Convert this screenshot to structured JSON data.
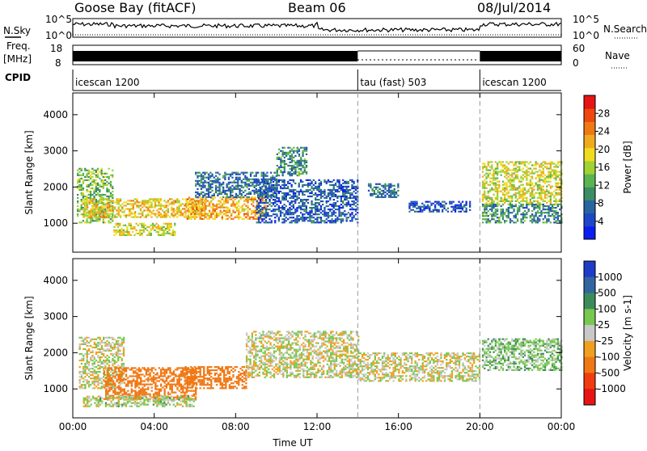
{
  "header": {
    "site": "Goose Bay (fitACF)",
    "beam": "Beam 06",
    "date": "08/Jul/2014"
  },
  "status_rows": {
    "nsky_label": "N.Sky",
    "nsky_ticks": [
      "10^5",
      "10^0"
    ],
    "nsearch_label": "N.Search",
    "nsearch_ticks": [
      "10^5",
      "10^0"
    ],
    "freq_label": "Freq.",
    "freq_units": "[MHz]",
    "freq_ticks": [
      "18",
      "8"
    ],
    "nave_label": "Nave",
    "nave_ticks": [
      "60",
      "0"
    ],
    "cpid_label": "CPID",
    "cpid_segments": [
      {
        "name": "icescan 1200",
        "start_hour": 0,
        "end_hour": 14
      },
      {
        "name": "tau (fast) 503",
        "start_hour": 14,
        "end_hour": 20
      },
      {
        "name": "icescan 1200",
        "start_hour": 20,
        "end_hour": 24
      }
    ]
  },
  "chart_data": [
    {
      "type": "heatmap",
      "title": "",
      "xlabel": "Time UT",
      "ylabel": "Slant Range [km]",
      "xlim": [
        0,
        24
      ],
      "ylim": [
        200,
        4600
      ],
      "x_ticks": [
        "00:00",
        "04:00",
        "08:00",
        "12:00",
        "16:00",
        "20:00",
        "00:00"
      ],
      "y_ticks": [
        1000,
        2000,
        3000,
        4000
      ],
      "colorbar": {
        "label": "Power [dB]",
        "ticks": [
          4,
          8,
          12,
          16,
          20,
          24,
          28
        ],
        "min": 0,
        "max": 32,
        "colors": [
          "#0a1ef0",
          "#1e46c8",
          "#2864a0",
          "#3c8c64",
          "#5ab450",
          "#a0d232",
          "#f0dc1e",
          "#f0aa1e",
          "#f07814",
          "#f0460f",
          "#e61414"
        ]
      },
      "regions": [
        {
          "t0": 0.2,
          "t1": 2.0,
          "r0": 1000,
          "r1": 2500,
          "value": 14
        },
        {
          "t0": 0.5,
          "t1": 6.5,
          "r0": 1150,
          "r1": 1650,
          "value": 20
        },
        {
          "t0": 2.0,
          "t1": 5.0,
          "r0": 650,
          "r1": 1000,
          "value": 18
        },
        {
          "t0": 5.5,
          "t1": 9.5,
          "r0": 1100,
          "r1": 1700,
          "value": 22
        },
        {
          "t0": 6.0,
          "t1": 10.0,
          "r0": 1700,
          "r1": 2400,
          "value": 8
        },
        {
          "t0": 9.0,
          "t1": 14.0,
          "r0": 1000,
          "r1": 2200,
          "value": 6
        },
        {
          "t0": 10.0,
          "t1": 11.5,
          "r0": 2300,
          "r1": 3100,
          "value": 10
        },
        {
          "t0": 14.5,
          "t1": 16.0,
          "r0": 1700,
          "r1": 2100,
          "value": 8
        },
        {
          "t0": 16.5,
          "t1": 19.5,
          "r0": 1300,
          "r1": 1600,
          "value": 5
        },
        {
          "t0": 20.1,
          "t1": 24.0,
          "r0": 1500,
          "r1": 2700,
          "value": 18
        },
        {
          "t0": 20.1,
          "t1": 24.0,
          "r0": 1000,
          "r1": 1500,
          "value": 10
        }
      ]
    },
    {
      "type": "heatmap",
      "title": "",
      "xlabel": "Time UT",
      "ylabel": "Slant Range [km]",
      "xlim": [
        0,
        24
      ],
      "ylim": [
        200,
        4600
      ],
      "x_ticks": [
        "00:00",
        "04:00",
        "08:00",
        "12:00",
        "16:00",
        "20:00",
        "00:00"
      ],
      "y_ticks": [
        1000,
        2000,
        3000,
        4000
      ],
      "colorbar": {
        "label": "Velocity [m s-1]",
        "ticks": [
          "1000",
          "500",
          "100",
          "25",
          "-25",
          "-100",
          "-500",
          "-1000"
        ],
        "colors": [
          "#1e3cc8",
          "#3264a0",
          "#3c8c5a",
          "#78c850",
          "#c8c8c8",
          "#f0a01e",
          "#f07814",
          "#f03c0f",
          "#e61414"
        ]
      },
      "regions": [
        {
          "t0": 0.3,
          "t1": 2.5,
          "r0": 1000,
          "r1": 2400,
          "value": 0
        },
        {
          "t0": 1.5,
          "t1": 6.0,
          "r0": 700,
          "r1": 1600,
          "value": -200
        },
        {
          "t0": 5.5,
          "t1": 8.5,
          "r0": 1000,
          "r1": 1600,
          "value": -300
        },
        {
          "t0": 8.5,
          "t1": 14.0,
          "r0": 1300,
          "r1": 2600,
          "value": 0
        },
        {
          "t0": 14.0,
          "t1": 20.0,
          "r0": 1200,
          "r1": 2000,
          "value": 0
        },
        {
          "t0": 20.1,
          "t1": 24.0,
          "r0": 1500,
          "r1": 2400,
          "value": 60
        },
        {
          "t0": 0.5,
          "t1": 6.0,
          "r0": 500,
          "r1": 800,
          "value": 30
        }
      ]
    }
  ]
}
